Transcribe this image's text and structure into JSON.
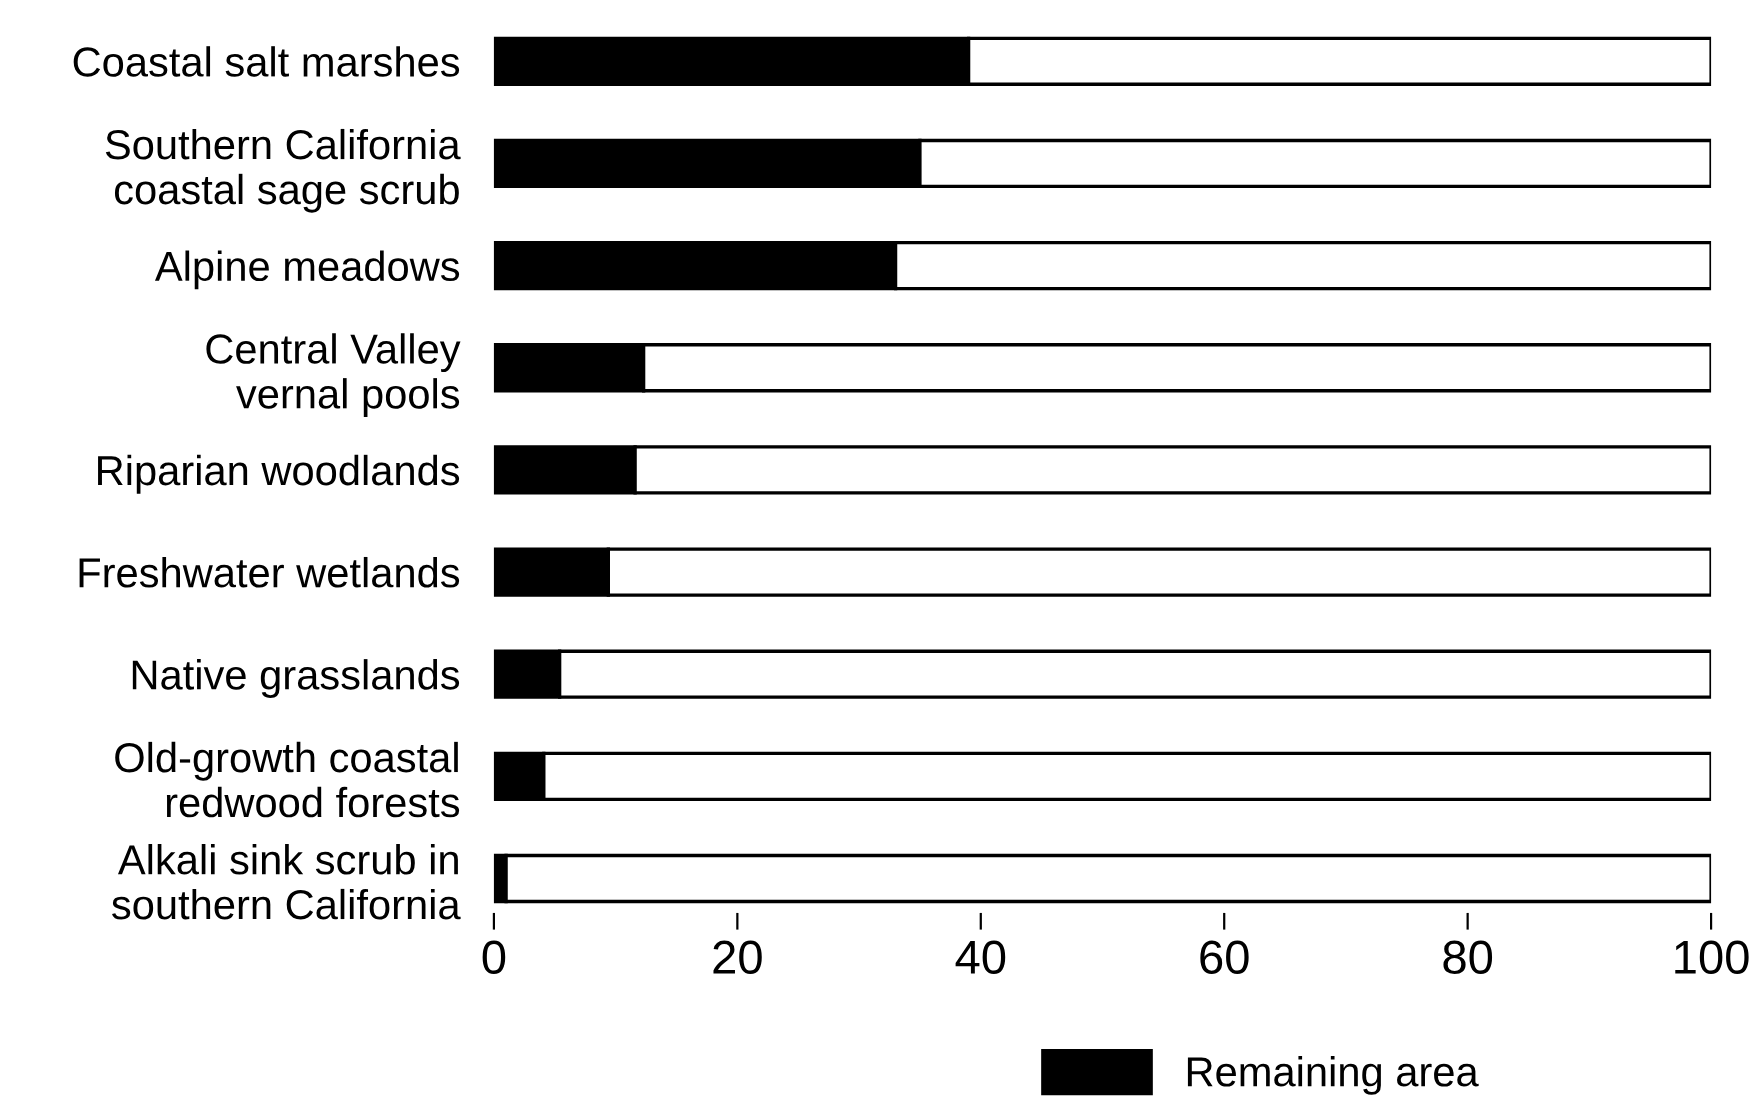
{
  "chart_data": {
    "type": "bar",
    "orientation": "horizontal",
    "stacked": true,
    "categories": [
      "Coastal salt marshes",
      "Southern California\ncoastal sage scrub",
      "Alpine meadows",
      "Central Valley\nvernal pools",
      "Riparian woodlands",
      "Freshwater wetlands",
      "Native grasslands",
      "Old-growth coastal\nredwood forests",
      "Alkali sink scrub in\nsouthern California"
    ],
    "series": [
      {
        "name": "Remaining area",
        "color": "#000000",
        "values": [
          39,
          35,
          33,
          12.3,
          11.6,
          9.4,
          5.4,
          4.1,
          1
        ]
      },
      {
        "color": "#ffffff",
        "values": [
          61,
          65,
          67,
          87.7,
          88.4,
          90.6,
          94.6,
          95.9,
          99
        ]
      }
    ],
    "xlim": [
      0,
      100
    ],
    "xticks": [
      0,
      20,
      40,
      60,
      80,
      100
    ],
    "grid": false,
    "legend": "bottom"
  }
}
